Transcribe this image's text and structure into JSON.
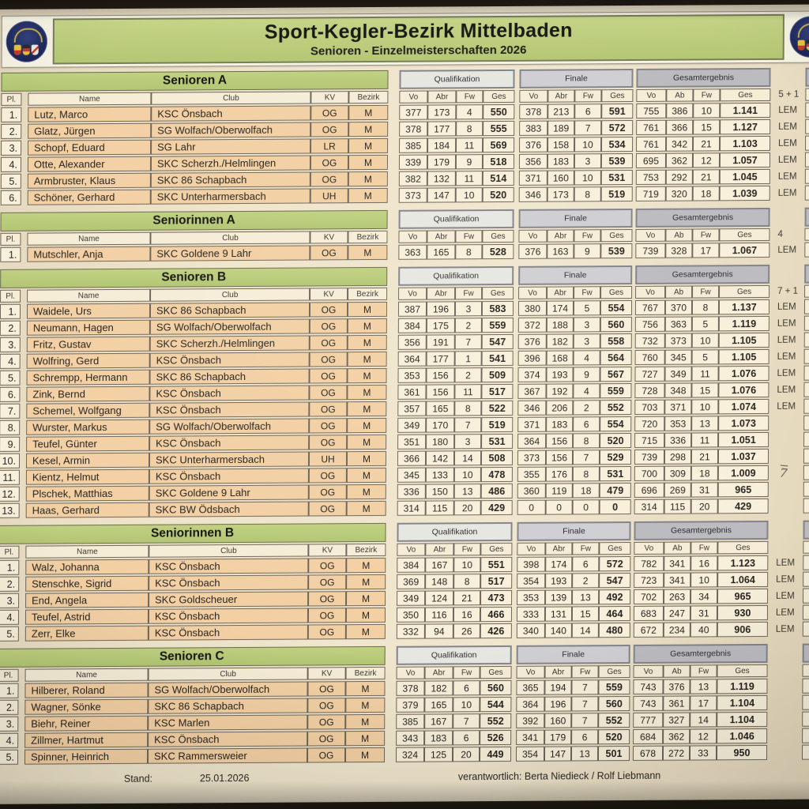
{
  "header": {
    "title": "Sport-Kegler-Bezirk Mittelbaden",
    "subtitle": "Senioren - Einzelmeisterschaften 2026",
    "logo_icon": "sport-kegler-bezirk-mittelbaden-badge"
  },
  "block_headers": {
    "qualification": "Qualifikation",
    "final": "Finale",
    "overall": "Gesamtergebnis"
  },
  "columns": {
    "pl": "Pl.",
    "name": "Name",
    "club": "Club",
    "kv": "KV",
    "bezirk": "Bezirk",
    "vo": "Vo",
    "abr": "Abr",
    "ab": "Ab",
    "fw": "Fw",
    "ges": "Ges"
  },
  "colors": {
    "section_header_green": "#b7c977",
    "row_peach": "#f3d0a4",
    "cell_cream": "#f8f0da",
    "block_header_grey": "#bbbbc0",
    "logo_navy": "#1c2757"
  },
  "sections": [
    {
      "title": "Senioren A",
      "side_note": "5 + 1",
      "rows": [
        {
          "pl": "1.",
          "name": "Lutz, Marco",
          "club": "KSC Önsbach",
          "kv": "OG",
          "bezirk": "M",
          "qual": [
            "377",
            "173",
            "4",
            "550"
          ],
          "final": [
            "378",
            "213",
            "6",
            "591"
          ],
          "total": [
            "755",
            "386",
            "10",
            "1.141"
          ],
          "note": "LEM"
        },
        {
          "pl": "2.",
          "name": "Glatz, Jürgen",
          "club": "SG Wolfach/Oberwolfach",
          "kv": "OG",
          "bezirk": "M",
          "qual": [
            "378",
            "177",
            "8",
            "555"
          ],
          "final": [
            "383",
            "189",
            "7",
            "572"
          ],
          "total": [
            "761",
            "366",
            "15",
            "1.127"
          ],
          "note": "LEM"
        },
        {
          "pl": "3.",
          "name": "Schopf, Eduard",
          "club": "SG Lahr",
          "kv": "LR",
          "bezirk": "M",
          "qual": [
            "385",
            "184",
            "11",
            "569"
          ],
          "final": [
            "376",
            "158",
            "10",
            "534"
          ],
          "total": [
            "761",
            "342",
            "21",
            "1.103"
          ],
          "note": "LEM"
        },
        {
          "pl": "4.",
          "name": "Otte, Alexander",
          "club": "SKC Scherzh./Helmlingen",
          "kv": "OG",
          "bezirk": "M",
          "qual": [
            "339",
            "179",
            "9",
            "518"
          ],
          "final": [
            "356",
            "183",
            "3",
            "539"
          ],
          "total": [
            "695",
            "362",
            "12",
            "1.057"
          ],
          "note": "LEM"
        },
        {
          "pl": "5.",
          "name": "Armbruster, Klaus",
          "club": "SKC 86 Schapbach",
          "kv": "OG",
          "bezirk": "M",
          "qual": [
            "382",
            "132",
            "11",
            "514"
          ],
          "final": [
            "371",
            "160",
            "10",
            "531"
          ],
          "total": [
            "753",
            "292",
            "21",
            "1.045"
          ],
          "note": "LEM"
        },
        {
          "pl": "6.",
          "name": "Schöner, Gerhard",
          "club": "SKC Unterharmersbach",
          "kv": "UH",
          "bezirk": "M",
          "qual": [
            "373",
            "147",
            "10",
            "520"
          ],
          "final": [
            "346",
            "173",
            "8",
            "519"
          ],
          "total": [
            "719",
            "320",
            "18",
            "1.039"
          ],
          "note": "LEM"
        }
      ]
    },
    {
      "title": "Seniorinnen A",
      "side_note": "4",
      "rows": [
        {
          "pl": "1.",
          "name": "Mutschler, Anja",
          "club": "SKC Goldene 9 Lahr",
          "kv": "OG",
          "bezirk": "M",
          "qual": [
            "363",
            "165",
            "8",
            "528"
          ],
          "final": [
            "376",
            "163",
            "9",
            "539"
          ],
          "total": [
            "739",
            "328",
            "17",
            "1.067"
          ],
          "note": "LEM"
        }
      ]
    },
    {
      "title": "Senioren B",
      "side_note": "7 + 1",
      "rows": [
        {
          "pl": "1.",
          "name": "Waidele, Urs",
          "club": "SKC 86 Schapbach",
          "kv": "OG",
          "bezirk": "M",
          "qual": [
            "387",
            "196",
            "3",
            "583"
          ],
          "final": [
            "380",
            "174",
            "5",
            "554"
          ],
          "total": [
            "767",
            "370",
            "8",
            "1.137"
          ],
          "note": "LEM"
        },
        {
          "pl": "2.",
          "name": "Neumann, Hagen",
          "club": "SG Wolfach/Oberwolfach",
          "kv": "OG",
          "bezirk": "M",
          "qual": [
            "384",
            "175",
            "2",
            "559"
          ],
          "final": [
            "372",
            "188",
            "3",
            "560"
          ],
          "total": [
            "756",
            "363",
            "5",
            "1.119"
          ],
          "note": "LEM"
        },
        {
          "pl": "3.",
          "name": "Fritz, Gustav",
          "club": "SKC Scherzh./Helmlingen",
          "kv": "OG",
          "bezirk": "M",
          "qual": [
            "356",
            "191",
            "7",
            "547"
          ],
          "final": [
            "376",
            "182",
            "3",
            "558"
          ],
          "total": [
            "732",
            "373",
            "10",
            "1.105"
          ],
          "note": "LEM"
        },
        {
          "pl": "4.",
          "name": "Wolfring, Gerd",
          "club": "KSC Önsbach",
          "kv": "OG",
          "bezirk": "M",
          "qual": [
            "364",
            "177",
            "1",
            "541"
          ],
          "final": [
            "396",
            "168",
            "4",
            "564"
          ],
          "total": [
            "760",
            "345",
            "5",
            "1.105"
          ],
          "note": "LEM"
        },
        {
          "pl": "5.",
          "name": "Schrempp, Hermann",
          "club": "SKC 86 Schapbach",
          "kv": "OG",
          "bezirk": "M",
          "qual": [
            "353",
            "156",
            "2",
            "509"
          ],
          "final": [
            "374",
            "193",
            "9",
            "567"
          ],
          "total": [
            "727",
            "349",
            "11",
            "1.076"
          ],
          "note": "LEM"
        },
        {
          "pl": "6.",
          "name": "Zink, Bernd",
          "club": "KSC Önsbach",
          "kv": "OG",
          "bezirk": "M",
          "qual": [
            "361",
            "156",
            "11",
            "517"
          ],
          "final": [
            "367",
            "192",
            "4",
            "559"
          ],
          "total": [
            "728",
            "348",
            "15",
            "1.076"
          ],
          "note": "LEM"
        },
        {
          "pl": "7.",
          "name": "Schemel, Wolfgang",
          "club": "KSC Önsbach",
          "kv": "OG",
          "bezirk": "M",
          "qual": [
            "357",
            "165",
            "8",
            "522"
          ],
          "final": [
            "346",
            "206",
            "2",
            "552"
          ],
          "total": [
            "703",
            "371",
            "10",
            "1.074"
          ],
          "note": "LEM"
        },
        {
          "pl": "8.",
          "name": "Wurster, Markus",
          "club": "SG Wolfach/Oberwolfach",
          "kv": "OG",
          "bezirk": "M",
          "qual": [
            "349",
            "170",
            "7",
            "519"
          ],
          "final": [
            "371",
            "183",
            "6",
            "554"
          ],
          "total": [
            "720",
            "353",
            "13",
            "1.073"
          ],
          "note": ""
        },
        {
          "pl": "9.",
          "name": "Teufel, Günter",
          "club": "KSC Önsbach",
          "kv": "OG",
          "bezirk": "M",
          "qual": [
            "351",
            "180",
            "3",
            "531"
          ],
          "final": [
            "364",
            "156",
            "8",
            "520"
          ],
          "total": [
            "715",
            "336",
            "11",
            "1.051"
          ],
          "note": ""
        },
        {
          "pl": "10.",
          "name": "Kesel, Armin",
          "club": "SKC Unterharmersbach",
          "kv": "UH",
          "bezirk": "M",
          "qual": [
            "366",
            "142",
            "14",
            "508"
          ],
          "final": [
            "373",
            "156",
            "7",
            "529"
          ],
          "total": [
            "739",
            "298",
            "21",
            "1.037"
          ],
          "note": ""
        },
        {
          "pl": "11.",
          "name": "Kientz, Helmut",
          "club": "KSC Önsbach",
          "kv": "OG",
          "bezirk": "M",
          "qual": [
            "345",
            "133",
            "10",
            "478"
          ],
          "final": [
            "355",
            "176",
            "8",
            "531"
          ],
          "total": [
            "700",
            "309",
            "18",
            "1.009"
          ],
          "note": "",
          "hand": "7"
        },
        {
          "pl": "12.",
          "name": "Plschek, Matthias",
          "club": "SKC Goldene 9 Lahr",
          "kv": "OG",
          "bezirk": "M",
          "qual": [
            "336",
            "150",
            "13",
            "486"
          ],
          "final": [
            "360",
            "119",
            "18",
            "479"
          ],
          "total": [
            "696",
            "269",
            "31",
            "965"
          ],
          "note": ""
        },
        {
          "pl": "13.",
          "name": "Haas, Gerhard",
          "club": "SKC BW Ödsbach",
          "kv": "OG",
          "bezirk": "M",
          "qual": [
            "314",
            "115",
            "20",
            "429"
          ],
          "final": [
            "0",
            "0",
            "0",
            "0"
          ],
          "total": [
            "314",
            "115",
            "20",
            "429"
          ],
          "note": ""
        }
      ]
    },
    {
      "title": "Seniorinnen B",
      "side_note": "",
      "rows": [
        {
          "pl": "1.",
          "name": "Walz, Johanna",
          "club": "KSC Önsbach",
          "kv": "OG",
          "bezirk": "M",
          "qual": [
            "384",
            "167",
            "10",
            "551"
          ],
          "final": [
            "398",
            "174",
            "6",
            "572"
          ],
          "total": [
            "782",
            "341",
            "16",
            "1.123"
          ],
          "note": "LEM"
        },
        {
          "pl": "2.",
          "name": "Stenschke, Sigrid",
          "club": "KSC Önsbach",
          "kv": "OG",
          "bezirk": "M",
          "qual": [
            "369",
            "148",
            "8",
            "517"
          ],
          "final": [
            "354",
            "193",
            "2",
            "547"
          ],
          "total": [
            "723",
            "341",
            "10",
            "1.064"
          ],
          "note": "LEM"
        },
        {
          "pl": "3.",
          "name": "End, Angela",
          "club": "SKC Goldscheuer",
          "kv": "OG",
          "bezirk": "M",
          "qual": [
            "349",
            "124",
            "21",
            "473"
          ],
          "final": [
            "353",
            "139",
            "13",
            "492"
          ],
          "total": [
            "702",
            "263",
            "34",
            "965"
          ],
          "note": "LEM"
        },
        {
          "pl": "4.",
          "name": "Teufel, Astrid",
          "club": "KSC Önsbach",
          "kv": "OG",
          "bezirk": "M",
          "qual": [
            "350",
            "116",
            "16",
            "466"
          ],
          "final": [
            "333",
            "131",
            "15",
            "464"
          ],
          "total": [
            "683",
            "247",
            "31",
            "930"
          ],
          "note": "LEM"
        },
        {
          "pl": "5.",
          "name": "Zerr, Elke",
          "club": "KSC Önsbach",
          "kv": "OG",
          "bezirk": "M",
          "qual": [
            "332",
            "94",
            "26",
            "426"
          ],
          "final": [
            "340",
            "140",
            "14",
            "480"
          ],
          "total": [
            "672",
            "234",
            "40",
            "906"
          ],
          "note": "LEM"
        }
      ]
    },
    {
      "title": "Senioren C",
      "side_note": "",
      "rows": [
        {
          "pl": "1.",
          "name": "Hilberer, Roland",
          "club": "SG Wolfach/Oberwolfach",
          "kv": "OG",
          "bezirk": "M",
          "qual": [
            "378",
            "182",
            "6",
            "560"
          ],
          "final": [
            "365",
            "194",
            "7",
            "559"
          ],
          "total": [
            "743",
            "376",
            "13",
            "1.119"
          ],
          "note": ""
        },
        {
          "pl": "2.",
          "name": "Wagner, Sönke",
          "club": "SKC 86 Schapbach",
          "kv": "OG",
          "bezirk": "M",
          "qual": [
            "379",
            "165",
            "10",
            "544"
          ],
          "final": [
            "364",
            "196",
            "7",
            "560"
          ],
          "total": [
            "743",
            "361",
            "17",
            "1.104"
          ],
          "note": ""
        },
        {
          "pl": "3.",
          "name": "Biehr, Reiner",
          "club": "KSC Marlen",
          "kv": "OG",
          "bezirk": "M",
          "qual": [
            "385",
            "167",
            "7",
            "552"
          ],
          "final": [
            "392",
            "160",
            "7",
            "552"
          ],
          "total": [
            "777",
            "327",
            "14",
            "1.104"
          ],
          "note": ""
        },
        {
          "pl": "4.",
          "name": "Zillmer, Hartmut",
          "club": "KSC Önsbach",
          "kv": "OG",
          "bezirk": "M",
          "qual": [
            "343",
            "183",
            "6",
            "526"
          ],
          "final": [
            "341",
            "179",
            "6",
            "520"
          ],
          "total": [
            "684",
            "362",
            "12",
            "1.046"
          ],
          "note": ""
        },
        {
          "pl": "5.",
          "name": "Spinner, Heinrich",
          "club": "SKC Rammersweier",
          "kv": "OG",
          "bezirk": "M",
          "qual": [
            "324",
            "125",
            "20",
            "449"
          ],
          "final": [
            "354",
            "147",
            "13",
            "501"
          ],
          "total": [
            "678",
            "272",
            "33",
            "950"
          ],
          "note": ""
        }
      ]
    }
  ],
  "footer": {
    "stand_label": "Stand:",
    "stand_value": "25.01.2026",
    "responsible": "verantwortlich: Berta Niedieck / Rolf Liebmann"
  }
}
